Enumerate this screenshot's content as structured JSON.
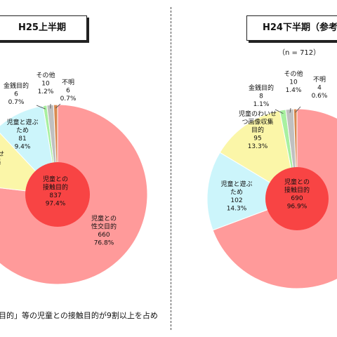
{
  "footer": "目的」等の児童との接触目的が9割以上を占め",
  "colors": {
    "sexual": "#ff9a9a",
    "play": "#ccf5fb",
    "photo": "#fbf6a8",
    "money": "#a8f0a0",
    "other": "#c0c0c0",
    "unknown": "#d98a50",
    "inner": "#f84444",
    "stroke": "#ffffff"
  },
  "chart_data": [
    {
      "type": "pie",
      "title": "H25上半期",
      "segments": [
        {
          "category": "児童との性交目的",
          "lines": [
            "児童との",
            "性交目的"
          ],
          "count": "660",
          "percent": "76.8%",
          "color_key": "sexual"
        },
        {
          "category": "児童のわいせつ画像収集目的",
          "lines": [
            "いせ",
            "集"
          ],
          "count": "",
          "percent": "",
          "color_key": "photo"
        },
        {
          "category": "児童と遊ぶため",
          "lines": [
            "児童と遊ぶ",
            "ため"
          ],
          "count": "81",
          "percent": "9.4%",
          "color_key": "play"
        },
        {
          "category": "金銭目的",
          "lines": [
            "金銭目的"
          ],
          "count": "6",
          "percent": "0.7%",
          "color_key": "money"
        },
        {
          "category": "その他",
          "lines": [
            "その他"
          ],
          "count": "10",
          "percent": "1.2%",
          "color_key": "other"
        },
        {
          "category": "不明",
          "lines": [
            "不明"
          ],
          "count": "6",
          "percent": "0.7%",
          "color_key": "unknown"
        }
      ],
      "inner": {
        "lines": [
          "児童との",
          "接触目的"
        ],
        "count": "837",
        "percent": "97.4%"
      }
    },
    {
      "type": "pie",
      "title": "H24下半期（参考",
      "n_label": "（n = 712）",
      "segments": [
        {
          "category": "児童との性交目的",
          "lines": [],
          "count": "",
          "percent": "",
          "color_key": "sexual"
        },
        {
          "category": "児童と遊ぶため",
          "lines": [
            "児童と遊ぶ",
            "ため"
          ],
          "count": "102",
          "percent": "14.3%",
          "color_key": "play"
        },
        {
          "category": "児童のわいせつ画像収集目的",
          "lines": [
            "児童のわいせ",
            "つ画像収集",
            "目的"
          ],
          "count": "95",
          "percent": "13.3%",
          "color_key": "photo"
        },
        {
          "category": "金銭目的",
          "lines": [
            "金銭目的"
          ],
          "count": "8",
          "percent": "1.1%",
          "color_key": "money"
        },
        {
          "category": "その他",
          "lines": [
            "その他"
          ],
          "count": "10",
          "percent": "1.4%",
          "color_key": "other"
        },
        {
          "category": "不明",
          "lines": [
            "不明"
          ],
          "count": "4",
          "percent": "0.6%",
          "color_key": "unknown"
        }
      ],
      "inner": {
        "lines": [
          "児童との",
          "接触目的"
        ],
        "count": "690",
        "percent": "96.9%"
      }
    }
  ]
}
